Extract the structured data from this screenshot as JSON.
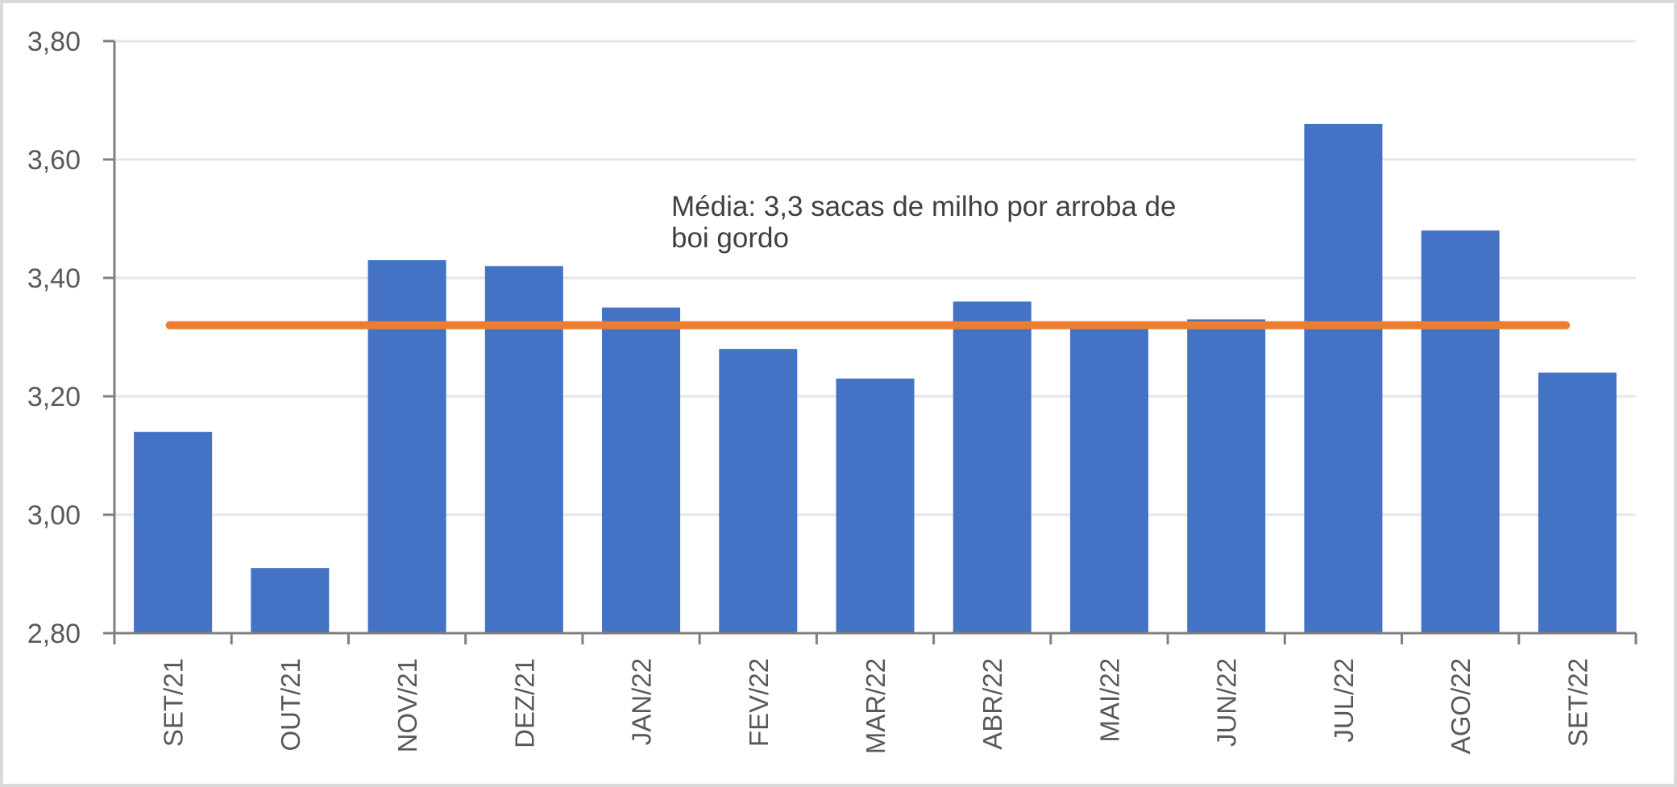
{
  "chart_data": {
    "type": "bar",
    "title": "",
    "xlabel": "",
    "ylabel": "",
    "ylim": [
      2.8,
      3.8
    ],
    "yticks": [
      "2,80",
      "3,00",
      "3,20",
      "3,40",
      "3,60",
      "3,80"
    ],
    "grid": true,
    "legend": null,
    "categories": [
      "SET/21",
      "OUT/21",
      "NOV/21",
      "DEZ/21",
      "JAN/22",
      "FEV/22",
      "MAR/22",
      "ABR/22",
      "MAI/22",
      "JUN/22",
      "JUL/22",
      "AGO/22",
      "SET/22"
    ],
    "series": [
      {
        "name": "Sacas de milho por arroba de boi gordo",
        "type": "bar",
        "color": "#4472C4",
        "values": [
          3.14,
          2.91,
          3.43,
          3.42,
          3.35,
          3.28,
          3.23,
          3.36,
          3.32,
          3.33,
          3.66,
          3.48,
          3.24
        ]
      },
      {
        "name": "Média",
        "type": "line",
        "color": "#ED7D31",
        "values": [
          3.32,
          3.32,
          3.32,
          3.32,
          3.32,
          3.32,
          3.32,
          3.32,
          3.32,
          3.32,
          3.32,
          3.32,
          3.32
        ]
      }
    ],
    "annotations": [
      {
        "text_line1": "Média: 3,3 sacas de milho por arroba de",
        "text_line2": "boi gordo"
      }
    ]
  },
  "colors": {
    "bar": "#4472C4",
    "average_line": "#ED7D31",
    "gridline": "#e6e6e6",
    "axis": "#7f7f7f",
    "tick_text": "#595959",
    "annotation_text": "#404040",
    "frame_border": "#d9d9d9"
  }
}
